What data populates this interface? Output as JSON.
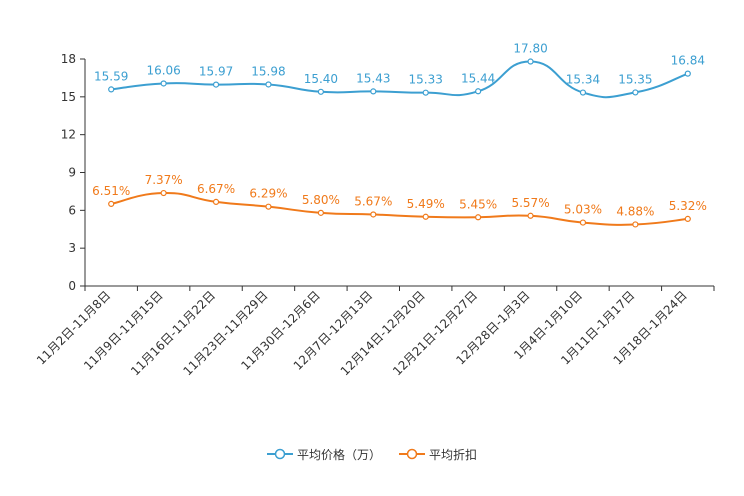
{
  "chart_data": {
    "type": "line",
    "title": "",
    "xlabel": "",
    "ylabel": "",
    "ylim": [
      0,
      18
    ],
    "yticks": [
      0,
      3,
      6,
      9,
      12,
      15,
      18
    ],
    "grid": false,
    "legend_position": "bottom-center",
    "categories": [
      "11月2日-11月8日",
      "11月9日-11月15日",
      "11月16日-11月22日",
      "11月23日-11月29日",
      "11月30日-12月6日",
      "12月7日-12月13日",
      "12月14日-12月20日",
      "12月21日-12月27日",
      "12月28日-1月3日",
      "1月4日-1月10日",
      "1月11日-1月17日",
      "1月18日-1月24日"
    ],
    "series": [
      {
        "name": "平均价格（万）",
        "color": "#3c9fd1",
        "values": [
          15.59,
          16.06,
          15.97,
          15.98,
          15.4,
          15.43,
          15.33,
          15.44,
          17.8,
          15.34,
          15.35,
          16.84
        ],
        "labels": [
          "15.59",
          "16.06",
          "15.97",
          "15.98",
          "15.40",
          "15.43",
          "15.33",
          "15.44",
          "17.80",
          "15.34",
          "15.35",
          "16.84"
        ]
      },
      {
        "name": "平均折扣",
        "color": "#f07a1b",
        "values": [
          6.51,
          7.37,
          6.67,
          6.29,
          5.8,
          5.67,
          5.49,
          5.45,
          5.57,
          5.03,
          4.88,
          5.32
        ],
        "labels": [
          "6.51%",
          "7.37%",
          "6.67%",
          "6.29%",
          "5.80%",
          "5.67%",
          "5.49%",
          "5.45%",
          "5.57%",
          "5.03%",
          "4.88%",
          "5.32%"
        ]
      }
    ]
  }
}
